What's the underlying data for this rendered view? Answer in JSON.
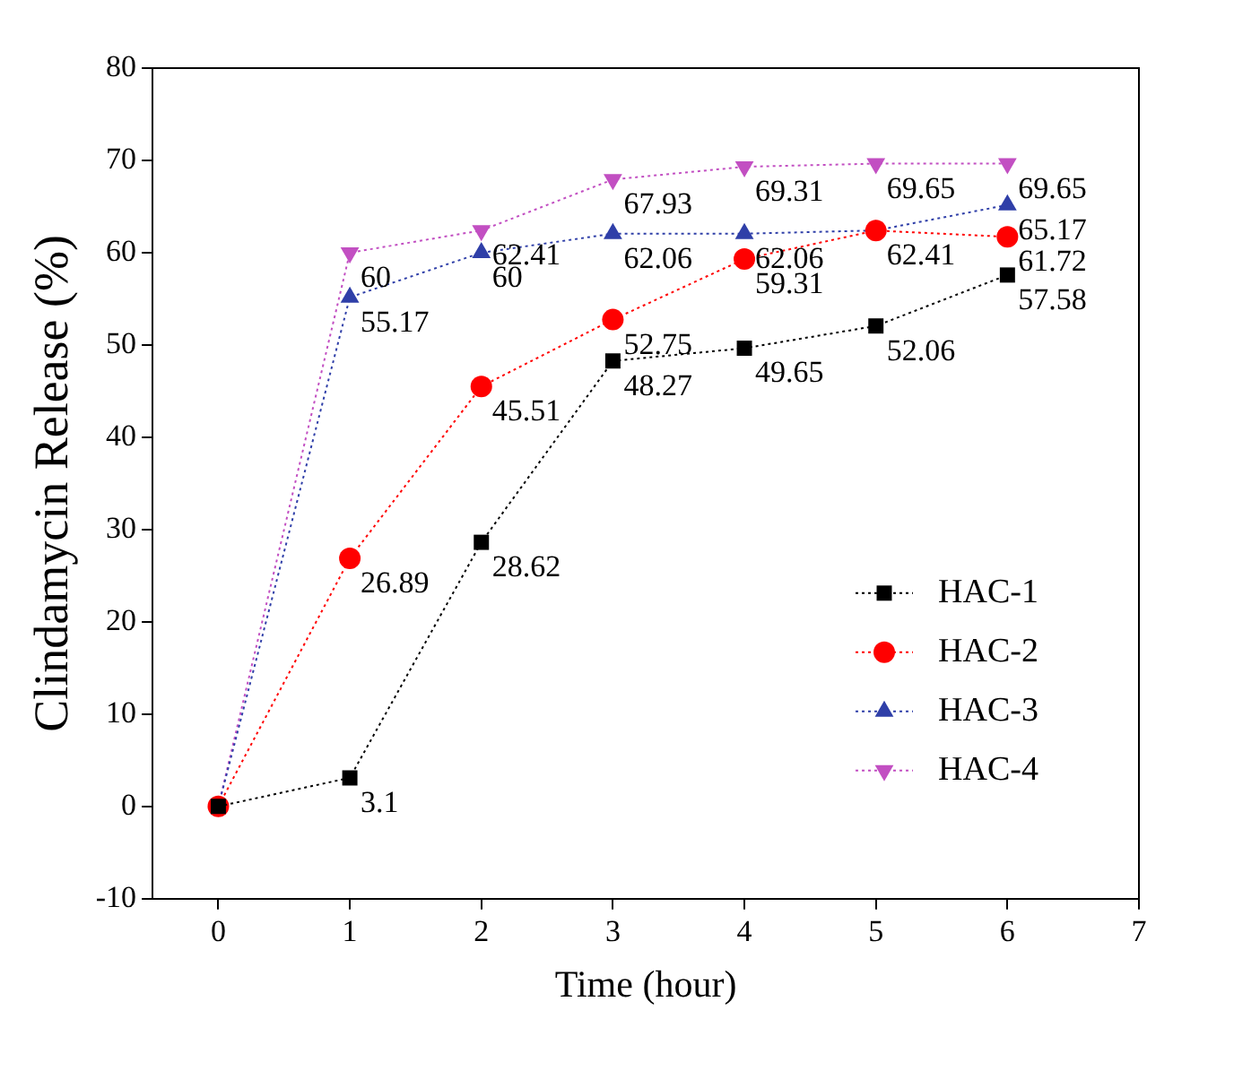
{
  "chart_data": {
    "type": "line",
    "xlabel": "Time (hour)",
    "ylabel": "Clindamycin Release (%)",
    "x": [
      0,
      1,
      2,
      3,
      4,
      5,
      6
    ],
    "xlim": [
      -0.5,
      7
    ],
    "xticks": [
      0,
      1,
      2,
      3,
      4,
      5,
      6,
      7
    ],
    "ylim": [
      -10,
      80
    ],
    "yticks": [
      -10,
      0,
      10,
      20,
      30,
      40,
      50,
      60,
      70,
      80
    ],
    "grid": false,
    "legend": "bottom right",
    "line_style": "dotted",
    "series": [
      {
        "name": "HAC-1",
        "color": "#000000",
        "marker": "square",
        "values": [
          0,
          3.1,
          28.62,
          48.27,
          49.65,
          52.06,
          57.58
        ],
        "value_labels": [
          null,
          "3.1",
          "28.62",
          "48.27",
          "49.65",
          "52.06",
          "57.58"
        ]
      },
      {
        "name": "HAC-2",
        "color": "#ff0000",
        "marker": "circle",
        "values": [
          0,
          26.89,
          45.51,
          52.75,
          59.31,
          62.4,
          61.72
        ],
        "value_labels": [
          null,
          "26.89",
          "45.51",
          "52.75",
          "59.31",
          null,
          "61.72"
        ]
      },
      {
        "name": "HAC-3",
        "color": "#2f3fa8",
        "marker": "triangle",
        "values": [
          0,
          55.17,
          60,
          62.06,
          62.06,
          62.41,
          65.17
        ],
        "value_labels": [
          null,
          "55.17",
          "60",
          "62.06",
          "62.06",
          "62.41",
          "65.17"
        ]
      },
      {
        "name": "HAC-4",
        "color": "#c24fc2",
        "marker": "triangle_down",
        "values": [
          0,
          60,
          62.41,
          67.93,
          69.31,
          69.65,
          69.65
        ],
        "value_labels": [
          null,
          "60",
          "62.41",
          "67.93",
          "69.31",
          "69.65",
          "69.65"
        ]
      }
    ]
  }
}
